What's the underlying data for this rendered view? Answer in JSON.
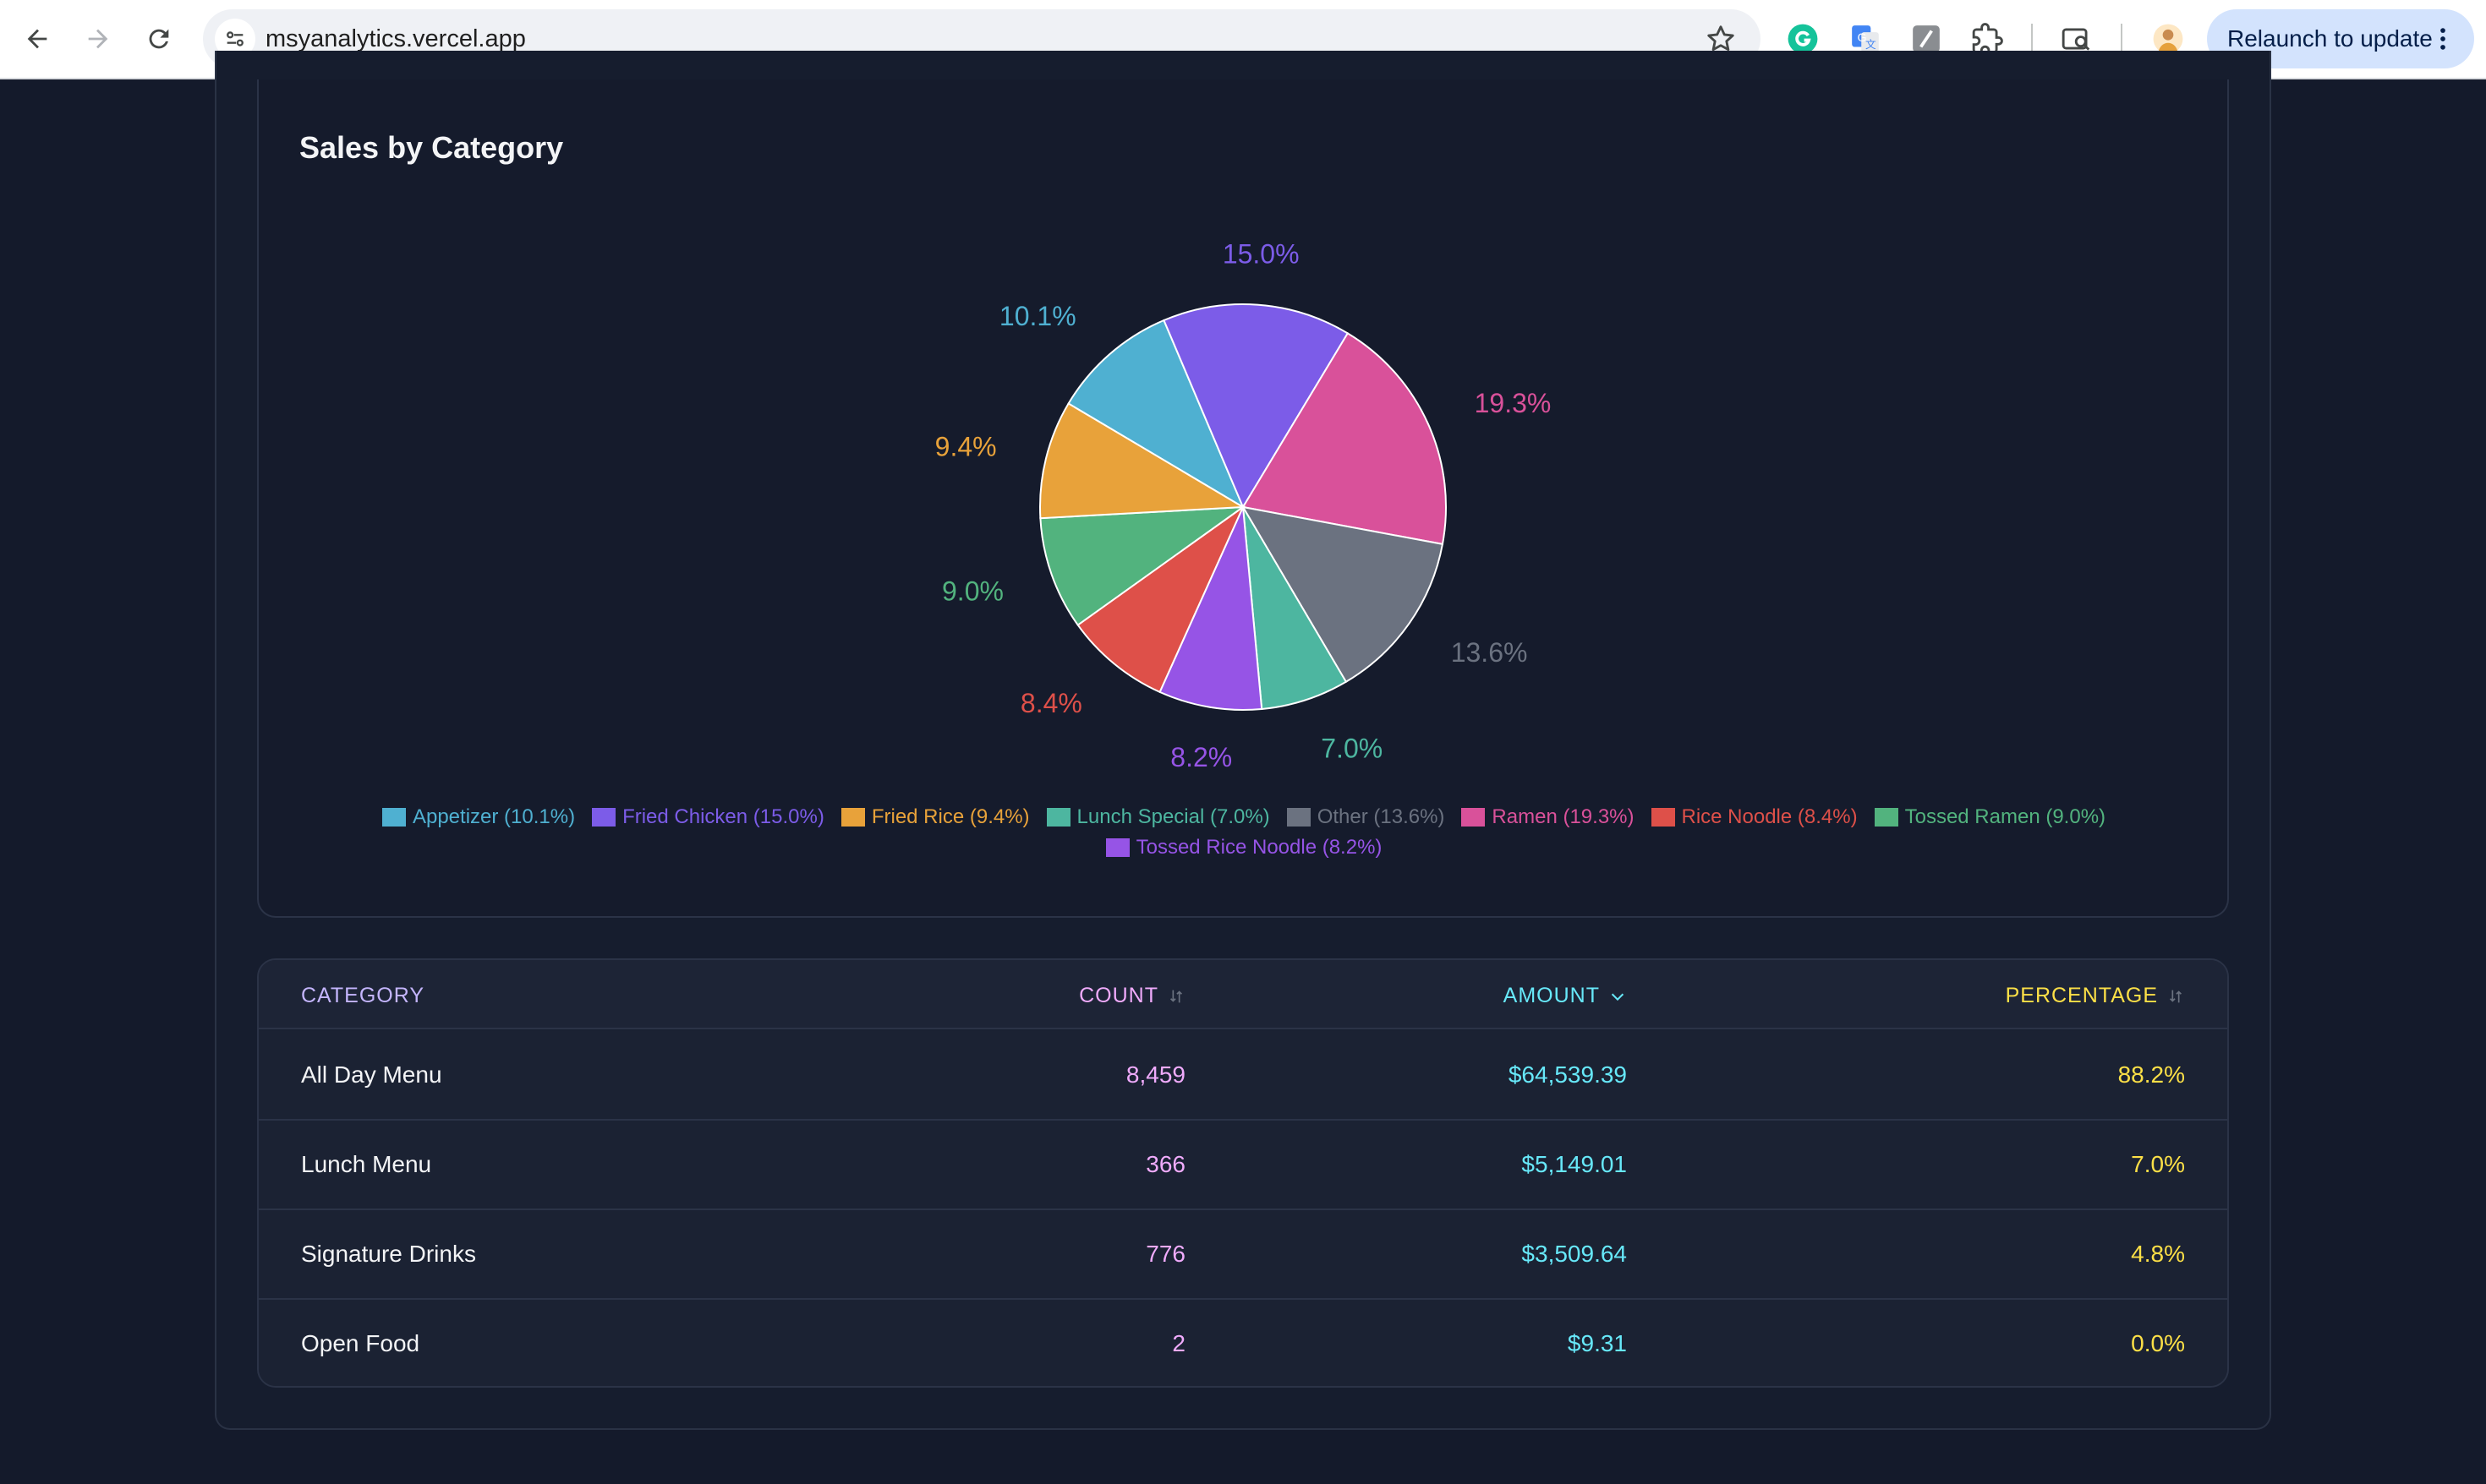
{
  "browser": {
    "url": "msyanalytics.vercel.app",
    "relaunch_label": "Relaunch to update"
  },
  "card": {
    "title": "Sales by Category"
  },
  "chart_data": {
    "type": "pie",
    "title": "Sales by Category",
    "legend_position": "bottom",
    "slices": [
      {
        "label": "Appetizer",
        "value": 10.1,
        "pct_label": "10.1%",
        "legend": "Appetizer (10.1%)",
        "color": "#4fb0d1"
      },
      {
        "label": "Fried Chicken",
        "value": 15.0,
        "pct_label": "15.0%",
        "legend": "Fried Chicken (15.0%)",
        "color": "#7c5ce8"
      },
      {
        "label": "Ramen",
        "value": 19.3,
        "pct_label": "19.3%",
        "legend": "Ramen (19.3%)",
        "color": "#d9519a"
      },
      {
        "label": "Other",
        "value": 13.6,
        "pct_label": "13.6%",
        "legend": "Other (13.6%)",
        "color": "#6b7280"
      },
      {
        "label": "Lunch Special",
        "value": 7.0,
        "pct_label": "7.0%",
        "legend": "Lunch Special (7.0%)",
        "color": "#4db6a0"
      },
      {
        "label": "Tossed Rice Noodle",
        "value": 8.2,
        "pct_label": "8.2%",
        "legend": "Tossed Rice Noodle (8.2%)",
        "color": "#9654e6"
      },
      {
        "label": "Rice Noodle",
        "value": 8.4,
        "pct_label": "8.4%",
        "legend": "Rice Noodle (8.4%)",
        "color": "#de5049"
      },
      {
        "label": "Tossed Ramen",
        "value": 9.0,
        "pct_label": "9.0%",
        "legend": "Tossed Ramen (9.0%)",
        "color": "#52b37e"
      },
      {
        "label": "Fried Rice",
        "value": 9.4,
        "pct_label": "9.4%",
        "legend": "Fried Rice (9.4%)",
        "color": "#e8a23a"
      }
    ],
    "legend_order": [
      "Appetizer",
      "Fried Chicken",
      "Fried Rice",
      "Lunch Special",
      "Other",
      "Ramen",
      "Rice Noodle",
      "Tossed Ramen",
      "Tossed Rice Noodle"
    ]
  },
  "table": {
    "headers": {
      "category": "CATEGORY",
      "count": "COUNT",
      "amount": "AMOUNT",
      "percentage": "PERCENTAGE"
    },
    "header_colors": {
      "category": "#c4b5fd",
      "count": "#f0abfc",
      "amount": "#67e8f9",
      "percentage": "#fde047"
    },
    "sorted_column": "amount",
    "rows": [
      {
        "category": "All Day Menu",
        "count": "8,459",
        "amount": "$64,539.39",
        "percentage": "88.2%"
      },
      {
        "category": "Lunch Menu",
        "count": "366",
        "amount": "$5,149.01",
        "percentage": "7.0%"
      },
      {
        "category": "Signature Drinks",
        "count": "776",
        "amount": "$3,509.64",
        "percentage": "4.8%"
      },
      {
        "category": "Open Food",
        "count": "2",
        "amount": "$9.31",
        "percentage": "0.0%"
      }
    ]
  }
}
